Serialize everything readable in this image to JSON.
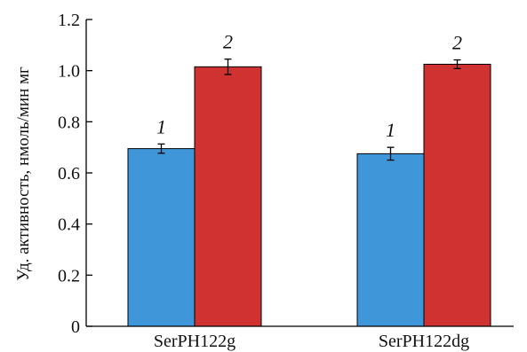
{
  "chart_data": {
    "type": "bar",
    "title": "",
    "xlabel": "",
    "ylabel": "Уд. активность, нмоль/мин мг",
    "ylim": [
      0,
      1.2
    ],
    "yticks": [
      "0",
      "0.2",
      "0.4",
      "0.6",
      "0.8",
      "1.0",
      "1.2"
    ],
    "grid": false,
    "categories": [
      "SerPH122g",
      "SerPH122dg"
    ],
    "series": [
      {
        "label": "1",
        "color": "#3f96d8",
        "values": [
          0.695,
          0.675
        ],
        "errors": [
          0.018,
          0.025
        ]
      },
      {
        "label": "2",
        "color": "#cf3230",
        "values": [
          1.015,
          1.025
        ],
        "errors": [
          0.03,
          0.017
        ]
      }
    ]
  }
}
